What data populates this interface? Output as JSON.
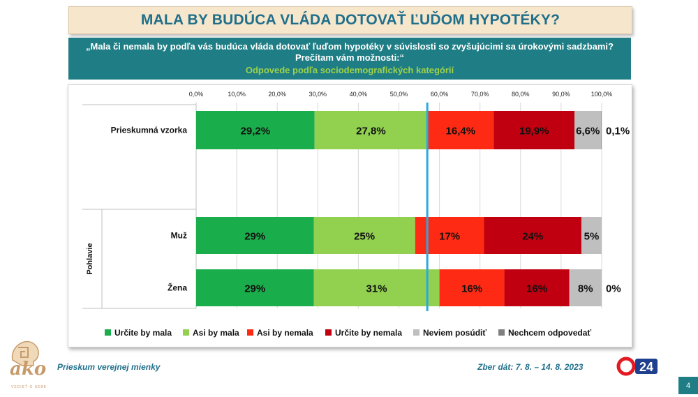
{
  "title": "MALA BY BUDÚCA VLÁDA DOTOVAŤ ĽUĎOM HYPOTÉKY?",
  "question": "„Mala či nemala by podľa vás budúca vláda dotovať ľuďom hypotéky v súvislosti so zvyšujúcimi sa úrokovými sadzbami? Prečítam vám možnosti:“",
  "subtitle": "Odpovede podľa sociodemografických kategórií",
  "footer": {
    "left": "Prieskum verejnej mienky",
    "right": "Zber dát: 7. 8. – 14. 8. 2023",
    "page": "4",
    "brand": "ako",
    "brand_tagline": "VEDIEŤ O SEBE",
    "partner_logo": "24"
  },
  "colors": {
    "title_text": "#1f6f8b",
    "title_bg": "#f6e6cc",
    "question_bg": "#1f7e85",
    "subtitle_text": "#9ed24a",
    "divider_line": "#29a9e0"
  },
  "chart_data": {
    "type": "bar",
    "orientation": "horizontal",
    "stacked": true,
    "xlim": [
      0,
      100
    ],
    "x_ticks": [
      "0,0%",
      "10,0%",
      "20,0%",
      "30,0%",
      "40,0%",
      "50,0%",
      "60,0%",
      "70,0%",
      "80,0%",
      "90,0%",
      "100,0%"
    ],
    "x_ticks_position": "top",
    "group_label": "Pohlavie",
    "divider_value": 57,
    "legend_position": "bottom",
    "categories": [
      "Prieskumná vzorka",
      "Muž",
      "Žena"
    ],
    "series": [
      {
        "name": "Určite by mala",
        "color": "#1aad4b",
        "values": [
          29.2,
          29,
          29
        ],
        "labels": [
          "29,2%",
          "29%",
          "29%"
        ]
      },
      {
        "name": "Asi by mala",
        "color": "#92d050",
        "values": [
          27.8,
          25,
          31
        ],
        "labels": [
          "27,8%",
          "25%",
          "31%"
        ]
      },
      {
        "name": "Asi by nemala",
        "color": "#ff2a14",
        "values": [
          16.4,
          17,
          16
        ],
        "labels": [
          "16,4%",
          "17%",
          "16%"
        ]
      },
      {
        "name": "Určite by nemala",
        "color": "#c00010",
        "values": [
          19.9,
          24,
          16
        ],
        "labels": [
          "19,9%",
          "24%",
          "16%"
        ]
      },
      {
        "name": "Neviem posúdiť",
        "color": "#bfbfbf",
        "values": [
          6.6,
          5,
          8
        ],
        "labels": [
          "6,6%",
          "5%",
          "8%"
        ]
      },
      {
        "name": "Nechcem odpovedať",
        "color": "#7f7f7f",
        "values": [
          0.1,
          0,
          0
        ],
        "labels": [
          "0,1%",
          "",
          "0%"
        ]
      }
    ]
  }
}
